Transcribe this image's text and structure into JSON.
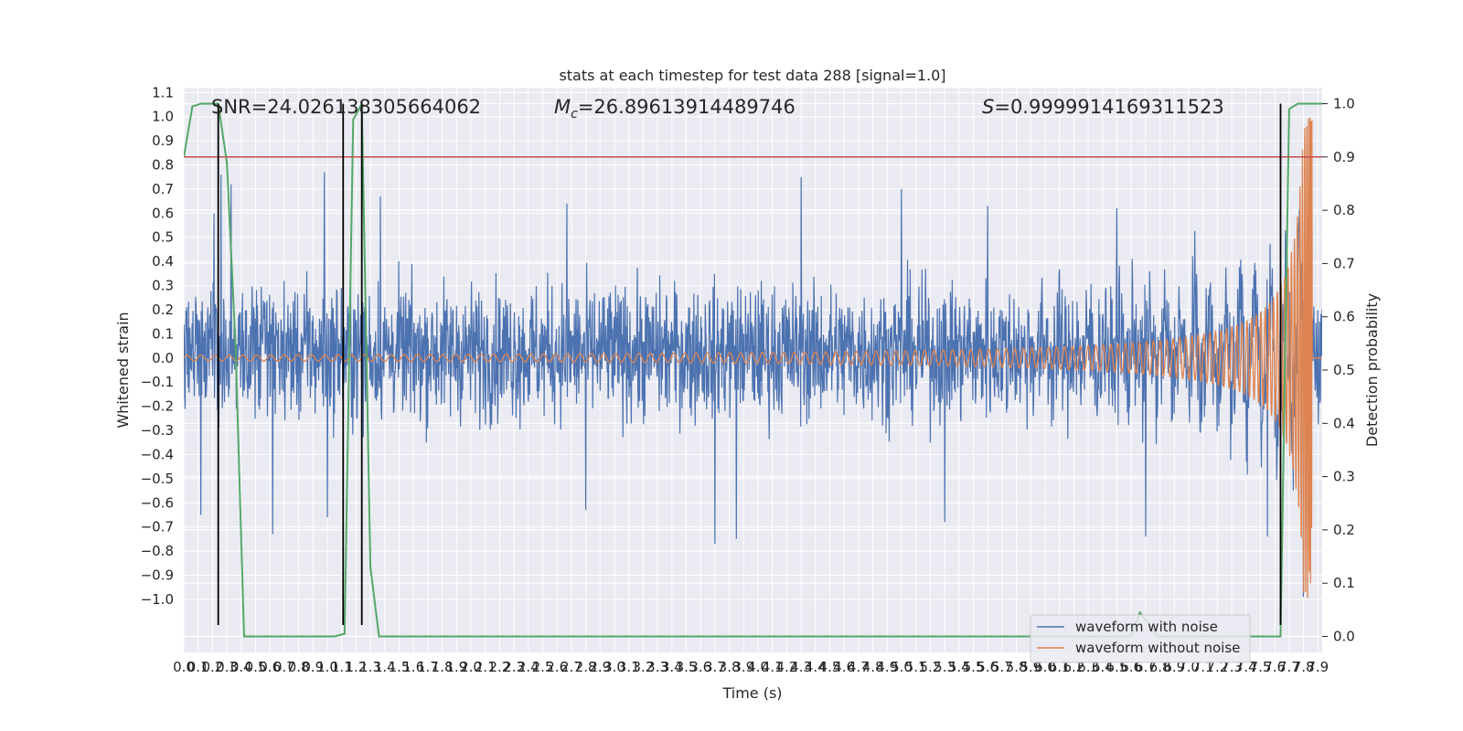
{
  "chart_data": {
    "type": "line",
    "title": "stats at each timestep for test data 288 [signal=1.0]",
    "xlabel": "Time (s)",
    "ylabel_left": "Whitened strain",
    "ylabel_right": "Detection probability",
    "xlim": [
      0.0,
      7.93
    ],
    "ylim_left": [
      -1.22,
      1.12
    ],
    "ylim_right": [
      -0.03,
      1.03
    ],
    "grid": true,
    "x_ticks": [
      "0.0",
      "0.1",
      "0.2",
      "0.3",
      "0.4",
      "0.5",
      "0.6",
      "0.7",
      "0.8",
      "0.9",
      "1.0",
      "1.1",
      "1.2",
      "1.3",
      "1.4",
      "1.5",
      "1.6",
      "1.7",
      "1.8",
      "1.9",
      "2.0",
      "2.1",
      "2.2",
      "2.3",
      "2.4",
      "2.5",
      "2.6",
      "2.7",
      "2.8",
      "2.9",
      "3.0",
      "3.1",
      "3.2",
      "3.3",
      "3.4",
      "3.5",
      "3.6",
      "3.7",
      "3.8",
      "3.9",
      "4.0",
      "4.1",
      "4.2",
      "4.3",
      "4.4",
      "4.5",
      "4.6",
      "4.7",
      "4.8",
      "4.9",
      "5.0",
      "5.1",
      "5.2",
      "5.3",
      "5.4",
      "5.5",
      "5.6",
      "5.7",
      "5.8",
      "5.9",
      "6.0",
      "6.1",
      "6.2",
      "6.3",
      "6.4",
      "6.5",
      "6.6",
      "6.7",
      "6.8",
      "6.9",
      "7.0",
      "7.1",
      "7.2",
      "7.3",
      "7.4",
      "7.5",
      "7.6",
      "7.7",
      "7.8",
      "7.9"
    ],
    "y_ticks_left": [
      "−1.0",
      "−0.9",
      "−0.8",
      "−0.7",
      "−0.6",
      "−0.5",
      "−0.4",
      "−0.3",
      "−0.2",
      "−0.1",
      "0.0",
      "0.1",
      "0.2",
      "0.3",
      "0.4",
      "0.5",
      "0.6",
      "0.7",
      "0.8",
      "0.9",
      "1.0",
      "1.1"
    ],
    "y_ticks_right": [
      "0.0",
      "0.1",
      "0.2",
      "0.3",
      "0.4",
      "0.5",
      "0.6",
      "0.7",
      "0.8",
      "0.9",
      "1.0"
    ],
    "annotations": {
      "snr": "SNR=24.026138305664062",
      "mc_symbol": "M",
      "mc_sub": "c",
      "mc_value": "=26.89613914489746",
      "s_symbol": "S",
      "s_value": "=0.9999914169311523"
    },
    "threshold_line": {
      "value": 0.9,
      "axis": "right",
      "color": "#c44e52"
    },
    "vertical_lines": [
      0.24,
      1.11,
      1.24,
      7.64
    ],
    "legend": {
      "placement": "lower-right",
      "entries": [
        {
          "label": "waveform with noise",
          "color": "#4c72b0"
        },
        {
          "label": "waveform without noise",
          "color": "#dd8452"
        }
      ]
    },
    "series": [
      {
        "name": "waveform with noise",
        "axis": "left",
        "color": "#4c72b0",
        "kind": "noise",
        "typical_range": [
          -0.3,
          0.35
        ],
        "peaks": [
          {
            "x": 0.21,
            "y": 0.6
          },
          {
            "x": 0.26,
            "y": 0.76
          },
          {
            "x": 0.33,
            "y": 0.72
          },
          {
            "x": 0.62,
            "y": 0.6
          },
          {
            "x": 0.98,
            "y": 0.77
          },
          {
            "x": 1.37,
            "y": 0.67
          },
          {
            "x": 2.67,
            "y": 0.64
          },
          {
            "x": 4.3,
            "y": 0.75
          },
          {
            "x": 5.0,
            "y": 0.7
          },
          {
            "x": 5.6,
            "y": 0.63
          },
          {
            "x": 6.5,
            "y": 0.62
          },
          {
            "x": 7.85,
            "y": 0.92
          }
        ],
        "troughs": [
          {
            "x": 0.12,
            "y": -0.65
          },
          {
            "x": 0.62,
            "y": -0.73
          },
          {
            "x": 1.0,
            "y": -0.66
          },
          {
            "x": 2.8,
            "y": -0.63
          },
          {
            "x": 3.7,
            "y": -0.77
          },
          {
            "x": 3.85,
            "y": -0.75
          },
          {
            "x": 5.3,
            "y": -0.68
          },
          {
            "x": 6.7,
            "y": -0.74
          },
          {
            "x": 7.55,
            "y": -0.74
          },
          {
            "x": 7.8,
            "y": -0.99
          }
        ]
      },
      {
        "name": "waveform without noise",
        "axis": "left",
        "color": "#dd8452",
        "kind": "chirp",
        "merger_time": 7.86,
        "peak_amplitude": 1.0,
        "early_amplitude": 0.01
      },
      {
        "axis": "right",
        "color": "#55a868",
        "points": [
          [
            0.0,
            0.9
          ],
          [
            0.06,
            0.995
          ],
          [
            0.12,
            1.0
          ],
          [
            0.24,
            1.0
          ],
          [
            0.3,
            0.89
          ],
          [
            0.36,
            0.55
          ],
          [
            0.42,
            0.0
          ],
          [
            0.6,
            0.0
          ],
          [
            1.05,
            0.0
          ],
          [
            1.12,
            0.005
          ],
          [
            1.18,
            0.97
          ],
          [
            1.24,
            1.0
          ],
          [
            1.3,
            0.13
          ],
          [
            1.36,
            0.0
          ],
          [
            6.6,
            0.0
          ],
          [
            6.66,
            0.045
          ],
          [
            6.72,
            0.025
          ],
          [
            6.78,
            0.0
          ],
          [
            7.64,
            0.0
          ],
          [
            7.7,
            0.99
          ],
          [
            7.76,
            1.0
          ],
          [
            7.93,
            1.0
          ]
        ]
      }
    ]
  }
}
